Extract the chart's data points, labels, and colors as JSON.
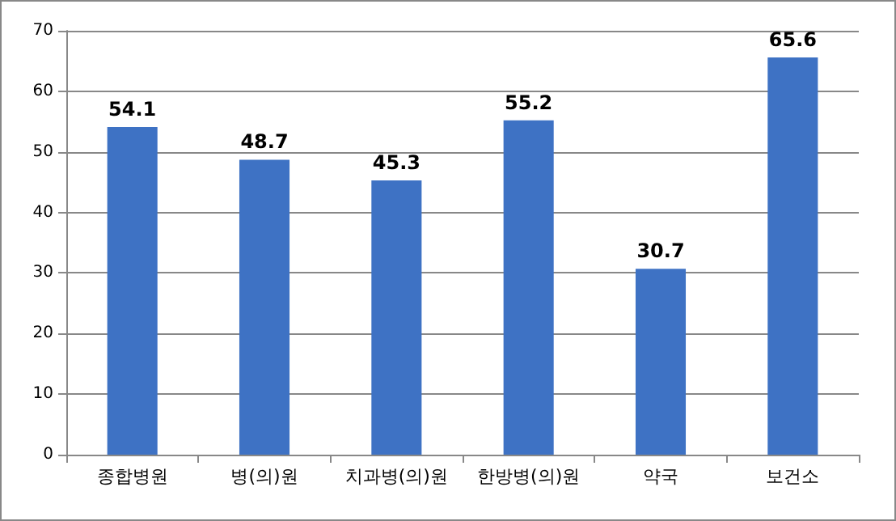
{
  "chart_data": {
    "type": "bar",
    "categories": [
      "종합병원",
      "병(의)원",
      "치과병(의)원",
      "한방병(의)원",
      "약국",
      "보건소"
    ],
    "values": [
      54.1,
      48.7,
      45.3,
      55.2,
      30.7,
      65.6
    ],
    "color": "#3e72c4",
    "ylim": [
      0,
      70
    ],
    "yticks": [
      0,
      10,
      20,
      30,
      40,
      50,
      60,
      70
    ],
    "grid": "y",
    "data_labels": true
  }
}
